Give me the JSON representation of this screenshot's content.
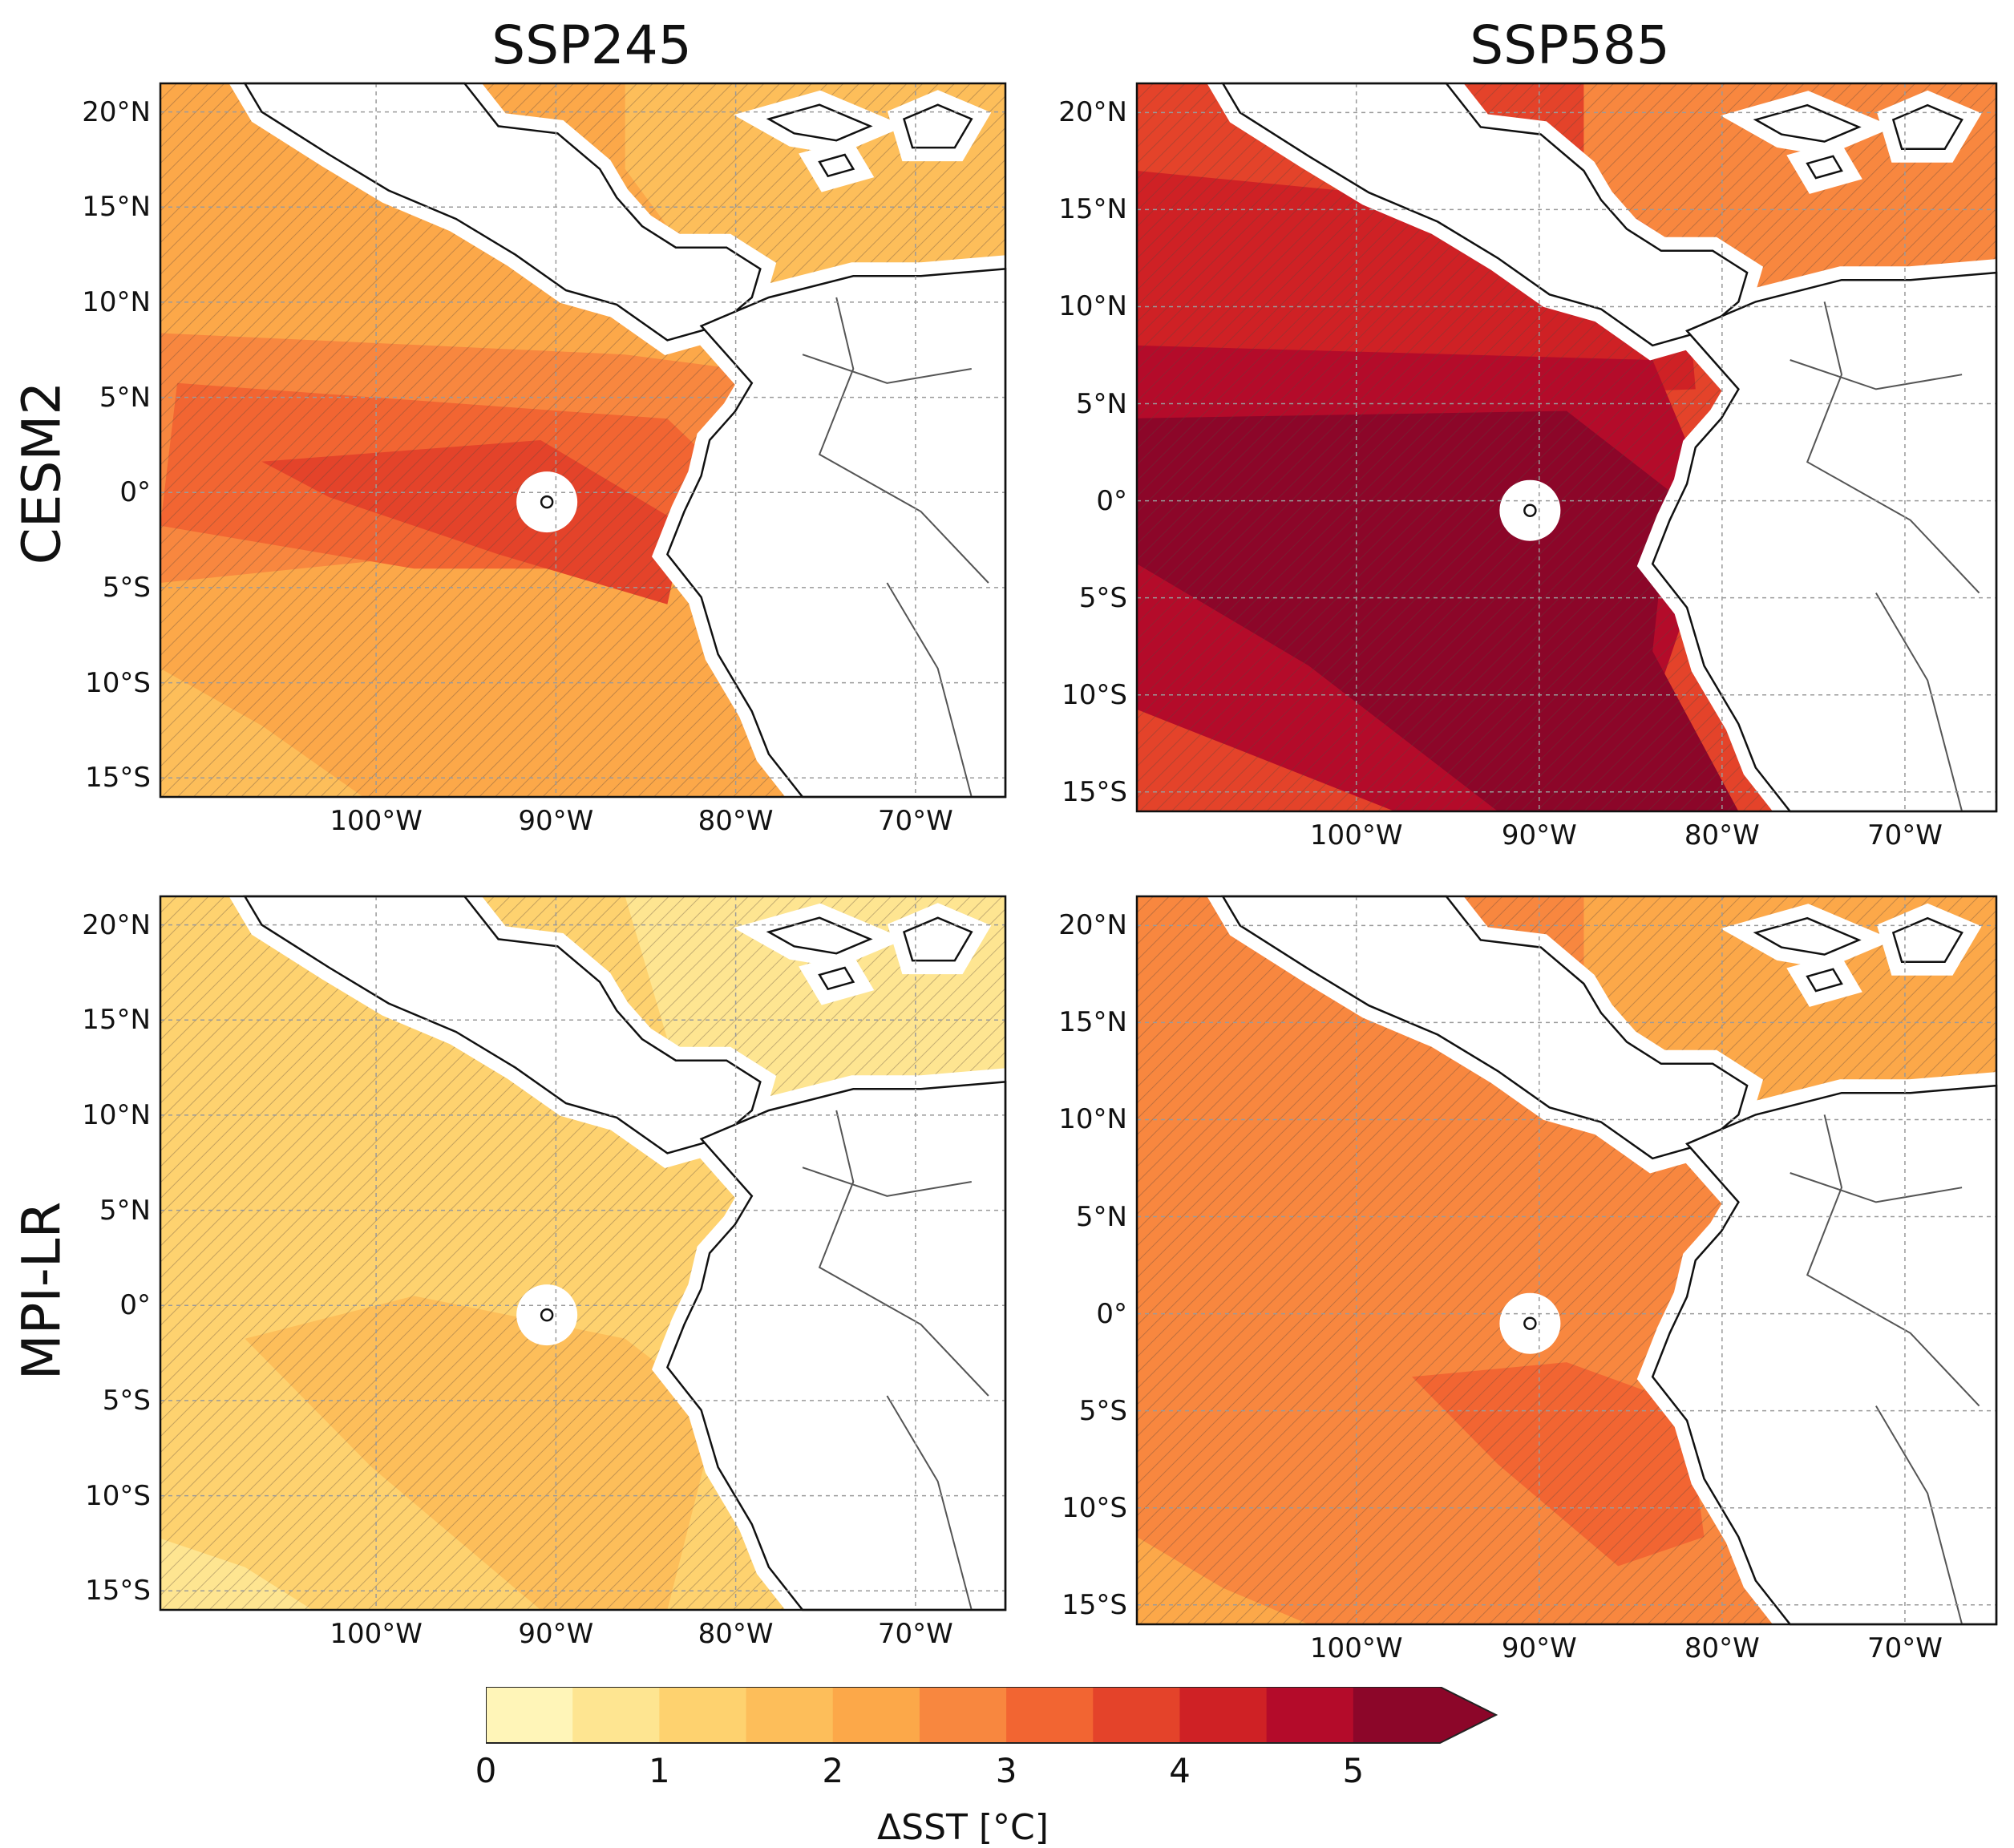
{
  "columns": [
    "SSP245",
    "SSP585"
  ],
  "rows": [
    "CESM2",
    "MPI-LR"
  ],
  "lat_ticks": [
    "20°N",
    "15°N",
    "10°N",
    "5°N",
    "0°",
    "5°S",
    "10°S",
    "15°S"
  ],
  "lon_ticks": [
    "100°W",
    "90°W",
    "80°W",
    "70°W"
  ],
  "colorbar": {
    "label": "ΔSST [°C]",
    "tick_labels": [
      "0",
      "1",
      "2",
      "3",
      "4",
      "5"
    ],
    "bins": [
      0,
      0.5,
      1,
      1.5,
      2,
      2.5,
      3,
      3.5,
      4,
      4.5,
      5,
      5.5
    ],
    "colors": [
      "#fff5b8",
      "#fee591",
      "#fed26f",
      "#fdbe5a",
      "#fca849",
      "#f8873f",
      "#f26532",
      "#e4432a",
      "#cf2125",
      "#b40b2a",
      "#8c0629"
    ],
    "extend": "max"
  },
  "map": {
    "extent_lon": [
      -112,
      -65
    ],
    "extent_lat": [
      -16,
      21.5
    ],
    "hatching": "significant change (hatched)",
    "panels": [
      {
        "model": "CESM2",
        "scenario": "SSP245",
        "background_dSST": 2.25,
        "zones": [
          {
            "dSST": 1.75,
            "region": "Gulf of Mexico / Caribbean north"
          },
          {
            "dSST": 2.75,
            "region": "off-equator band"
          },
          {
            "dSST": 3.25,
            "region": "equatorial band"
          },
          {
            "dSST": 3.75,
            "region": "equatorial core"
          },
          {
            "dSST": 1.75,
            "region": "southwest corner"
          }
        ]
      },
      {
        "model": "CESM2",
        "scenario": "SSP585",
        "background_dSST": 3.75,
        "zones": [
          {
            "dSST": 2.75,
            "region": "Caribbean"
          },
          {
            "dSST": 4.25,
            "region": "north band"
          },
          {
            "dSST": 4.75,
            "region": "equatorial band"
          },
          {
            "dSST": 5.25,
            "region": "equatorial core"
          }
        ]
      },
      {
        "model": "MPI-LR",
        "scenario": "SSP245",
        "background_dSST": 1.25,
        "zones": [
          {
            "dSST": 0.75,
            "region": "Caribbean"
          },
          {
            "dSST": 1.75,
            "region": "south-central tongue"
          },
          {
            "dSST": 0.75,
            "region": "southwest corner"
          }
        ]
      },
      {
        "model": "MPI-LR",
        "scenario": "SSP585",
        "background_dSST": 2.75,
        "zones": [
          {
            "dSST": 2.25,
            "region": "Caribbean / north"
          },
          {
            "dSST": 3.25,
            "region": "south-central tongue"
          },
          {
            "dSST": 2.25,
            "region": "southwest corner"
          }
        ]
      }
    ]
  }
}
